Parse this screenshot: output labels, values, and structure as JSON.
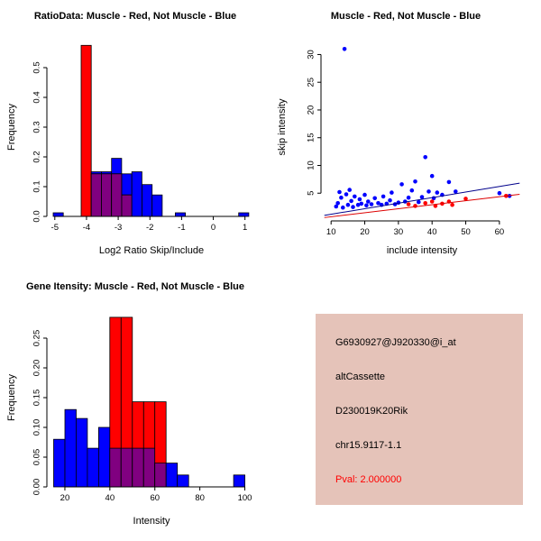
{
  "chart_data": [
    {
      "id": "ratio_hist",
      "type": "bar",
      "title": "RatioData: Muscle - Red, Not Muscle - Blue",
      "xlabel": "Log2 Ratio Skip/Include",
      "ylabel": "Frequency",
      "xlim": [
        -5.25,
        1.35
      ],
      "ylim": [
        0,
        0.6
      ],
      "grid": false,
      "legend": {
        "red": "Muscle",
        "blue": "Not Muscle"
      },
      "xticks": {
        "values": [
          -5,
          -4,
          -3,
          -2,
          -1,
          0,
          1
        ],
        "labels": [
          "-5",
          "-4",
          "-3",
          "-2",
          "-1",
          "0",
          "1"
        ]
      },
      "yticks": {
        "values": [
          0,
          0.1,
          0.2,
          0.3,
          0.4,
          0.5
        ],
        "labels": [
          "0.0",
          "0.1",
          "0.2",
          "0.3",
          "0.4",
          "0.5"
        ]
      },
      "bars": [
        {
          "x0": -5.05,
          "x1": -4.73,
          "blue": 0.012,
          "red": 0
        },
        {
          "x0": -4.17,
          "x1": -3.85,
          "blue": 0,
          "red": 0.575
        },
        {
          "x0": -3.85,
          "x1": -3.53,
          "blue": 0.15,
          "red": 0.143
        },
        {
          "x0": -3.53,
          "x1": -3.21,
          "blue": 0.15,
          "red": 0.143
        },
        {
          "x0": -3.21,
          "x1": -2.89,
          "blue": 0.195,
          "red": 0.143
        },
        {
          "x0": -2.89,
          "x1": -2.57,
          "blue": 0.143,
          "red": 0.072
        },
        {
          "x0": -2.57,
          "x1": -2.25,
          "blue": 0.15,
          "red": 0
        },
        {
          "x0": -2.25,
          "x1": -1.93,
          "blue": 0.107,
          "red": 0
        },
        {
          "x0": -1.93,
          "x1": -1.61,
          "blue": 0.072,
          "red": 0
        },
        {
          "x0": -1.2,
          "x1": -0.88,
          "blue": 0.012,
          "red": 0
        },
        {
          "x0": 0.8,
          "x1": 1.12,
          "blue": 0.012,
          "red": 0
        }
      ]
    },
    {
      "id": "scatter",
      "type": "scatter",
      "title": "Muscle - Red, Not Muscle - Blue",
      "xlabel": "include intensity",
      "ylabel": "skip intensity",
      "xlim": [
        7,
        67
      ],
      "ylim": [
        0,
        33
      ],
      "grid": false,
      "legend": {
        "red": "Muscle",
        "blue": "Not Muscle"
      },
      "xticks": {
        "values": [
          10,
          20,
          30,
          40,
          50,
          60
        ],
        "labels": [
          "10",
          "20",
          "30",
          "40",
          "50",
          "60"
        ]
      },
      "yticks": {
        "values": [
          5,
          10,
          15,
          20,
          25,
          30
        ],
        "labels": [
          "5",
          "10",
          "15",
          "20",
          "25",
          "30"
        ]
      },
      "series": [
        {
          "name": "Not Muscle",
          "color": "blue",
          "points": [
            [
              14,
              31
            ],
            [
              11.5,
              2.6
            ],
            [
              12,
              3.2
            ],
            [
              12.5,
              5.2
            ],
            [
              13,
              4.2
            ],
            [
              13.5,
              2.4
            ],
            [
              14.5,
              4.8
            ],
            [
              15,
              2.9
            ],
            [
              15.5,
              5.6
            ],
            [
              16,
              3.6
            ],
            [
              16.5,
              2.5
            ],
            [
              17,
              4.4
            ],
            [
              18,
              2.9
            ],
            [
              18.5,
              3.9
            ],
            [
              19,
              3.1
            ],
            [
              20,
              4.7
            ],
            [
              20.5,
              2.8
            ],
            [
              21,
              3.5
            ],
            [
              22,
              3
            ],
            [
              23,
              4.1
            ],
            [
              24,
              3.2
            ],
            [
              25,
              2.9
            ],
            [
              25.5,
              4.4
            ],
            [
              26.5,
              3.1
            ],
            [
              27.5,
              3.7
            ],
            [
              28,
              5.1
            ],
            [
              29,
              3
            ],
            [
              30,
              3.3
            ],
            [
              31,
              6.6
            ],
            [
              32,
              3.5
            ],
            [
              33,
              4.2
            ],
            [
              34,
              5.5
            ],
            [
              35,
              7.1
            ],
            [
              36,
              3.4
            ],
            [
              37,
              4.3
            ],
            [
              38,
              11.5
            ],
            [
              39,
              5.3
            ],
            [
              40,
              8.1
            ],
            [
              40.5,
              4.1
            ],
            [
              41.5,
              5.1
            ],
            [
              43,
              4.7
            ],
            [
              45,
              7
            ],
            [
              47,
              5.3
            ],
            [
              60,
              5
            ],
            [
              63,
              4.5
            ]
          ]
        },
        {
          "name": "Muscle",
          "color": "red",
          "points": [
            [
              33,
              3
            ],
            [
              35,
              2.7
            ],
            [
              38,
              3.2
            ],
            [
              40,
              3.5
            ],
            [
              41,
              2.7
            ],
            [
              43,
              3.1
            ],
            [
              45,
              3.5
            ],
            [
              46,
              2.9
            ],
            [
              50,
              4
            ],
            [
              62,
              4.5
            ]
          ]
        }
      ],
      "fit_lines": [
        {
          "color": "line_blue",
          "x": [
            8,
            66
          ],
          "y": [
            1.0,
            6.8
          ]
        },
        {
          "color": "line_red",
          "x": [
            8,
            66
          ],
          "y": [
            0.6,
            4.8
          ]
        }
      ]
    },
    {
      "id": "gene_hist",
      "type": "bar",
      "title": "Gene Itensity: Muscle - Red, Not Muscle - Blue",
      "xlabel": "Intensity",
      "ylabel": "Frequency",
      "xlim": [
        12,
        105
      ],
      "ylim": [
        0,
        0.3
      ],
      "grid": false,
      "legend": {
        "red": "Muscle",
        "blue": "Not Muscle"
      },
      "xticks": {
        "values": [
          20,
          40,
          60,
          80,
          100
        ],
        "labels": [
          "20",
          "40",
          "60",
          "80",
          "100"
        ]
      },
      "yticks": {
        "values": [
          0,
          0.05,
          0.1,
          0.15,
          0.2,
          0.25
        ],
        "labels": [
          "0.00",
          "0.05",
          "0.10",
          "0.15",
          "0.20",
          "0.25"
        ]
      },
      "bars": [
        {
          "x0": 15,
          "x1": 20,
          "blue": 0.08,
          "red": 0
        },
        {
          "x0": 20,
          "x1": 25,
          "blue": 0.13,
          "red": 0
        },
        {
          "x0": 25,
          "x1": 30,
          "blue": 0.115,
          "red": 0
        },
        {
          "x0": 30,
          "x1": 35,
          "blue": 0.065,
          "red": 0
        },
        {
          "x0": 35,
          "x1": 40,
          "blue": 0.1,
          "red": 0
        },
        {
          "x0": 40,
          "x1": 45,
          "blue": 0.065,
          "red": 0.285
        },
        {
          "x0": 45,
          "x1": 50,
          "blue": 0.065,
          "red": 0.285
        },
        {
          "x0": 50,
          "x1": 55,
          "blue": 0.065,
          "red": 0.143
        },
        {
          "x0": 55,
          "x1": 60,
          "blue": 0.065,
          "red": 0.143
        },
        {
          "x0": 60,
          "x1": 65,
          "blue": 0.04,
          "red": 0.143
        },
        {
          "x0": 65,
          "x1": 70,
          "blue": 0.04,
          "red": 0
        },
        {
          "x0": 70,
          "x1": 75,
          "blue": 0.02,
          "red": 0
        },
        {
          "x0": 95,
          "x1": 100,
          "blue": 0.02,
          "red": 0
        }
      ]
    }
  ],
  "info_box": {
    "bg": "#E5C3B9",
    "lines": [
      {
        "text": "G6930927@J920330@i_at",
        "color": "#000000"
      },
      {
        "text": "altCassette",
        "color": "#000000"
      },
      {
        "text": "D230019K20Rik",
        "color": "#000000"
      },
      {
        "text": "chr15.9117-1.1",
        "color": "#000000"
      },
      {
        "text": "Pval: 2.000000",
        "color": "#FF0000"
      }
    ]
  },
  "colors": {
    "blue": "#0000FF",
    "red": "#FF0000",
    "overlap": "#800080",
    "axis": "#000000",
    "line_blue": "#00008B",
    "line_red": "#DD0000"
  }
}
